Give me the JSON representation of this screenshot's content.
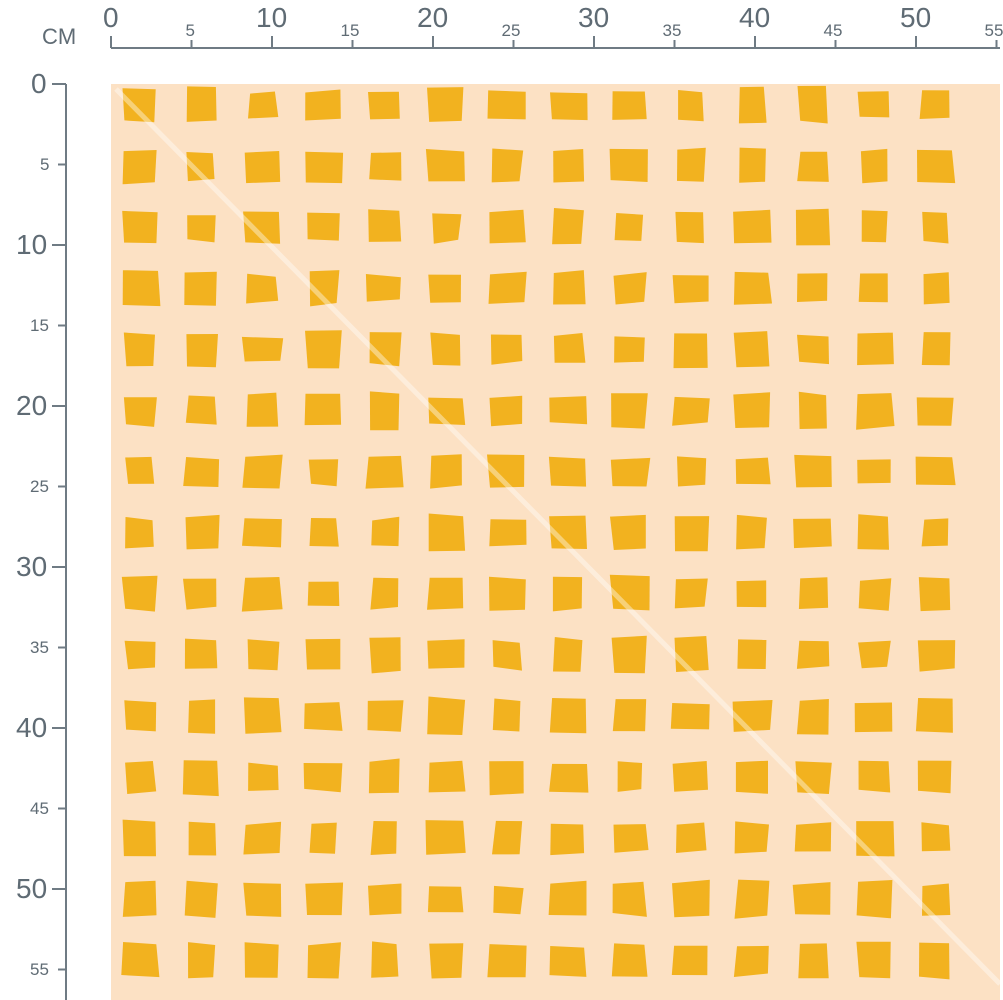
{
  "ruler": {
    "unit_label": "CM",
    "top_ticks": [
      "0",
      "5",
      "10",
      "15",
      "20",
      "25",
      "30",
      "35",
      "40",
      "45",
      "50",
      "55"
    ],
    "left_ticks": [
      "0",
      "5",
      "10",
      "15",
      "20",
      "25",
      "30",
      "35",
      "40",
      "45",
      "50",
      "55"
    ]
  },
  "fabric": {
    "background_color": "#fce1c4",
    "square_color": "#f2b21f",
    "sheen_color": "#ffffff",
    "columns": 14,
    "rows": 15
  },
  "ruler_color": "#6f7b84"
}
